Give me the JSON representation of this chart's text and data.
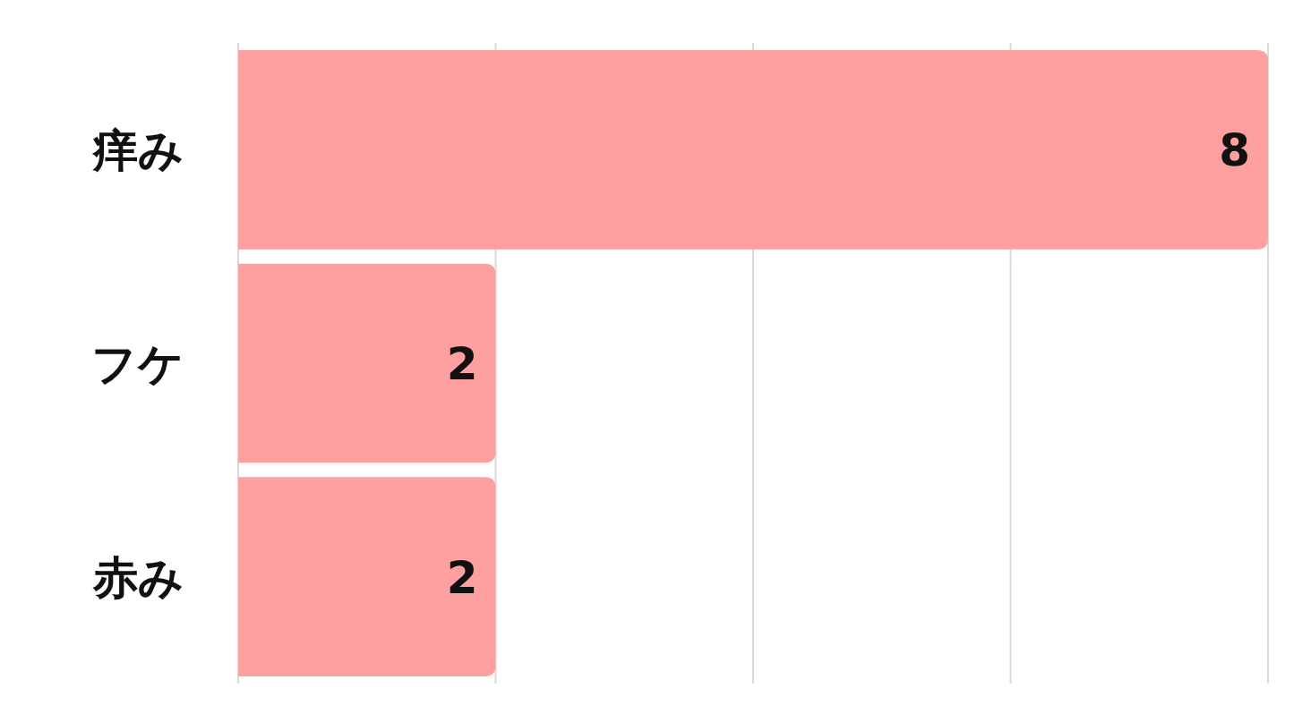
{
  "chart_data": {
    "type": "bar",
    "orientation": "horizontal",
    "categories": [
      "痒み",
      "フケ",
      "赤み"
    ],
    "values": [
      8,
      2,
      2
    ],
    "color": "#ffa0a0",
    "xlim": [
      0,
      8
    ],
    "xticks": [
      {
        "value": 0,
        "label": null
      },
      {
        "value": 2,
        "label": null
      },
      {
        "value": 4,
        "label": null
      },
      {
        "value": 6,
        "label": null
      },
      {
        "value": 8,
        "label": null
      }
    ],
    "grid": "x",
    "data_labels": true,
    "tick_labels": "y"
  }
}
